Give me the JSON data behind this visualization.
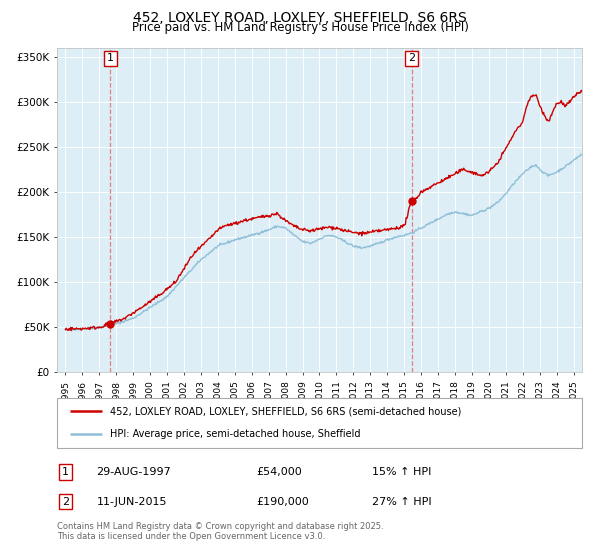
{
  "title": "452, LOXLEY ROAD, LOXLEY, SHEFFIELD, S6 6RS",
  "subtitle": "Price paid vs. HM Land Registry's House Price Index (HPI)",
  "sale1_date": "29-AUG-1997",
  "sale1_price": 54000,
  "sale1_pct": "15%",
  "sale1_x": 1997.65,
  "sale2_date": "11-JUN-2015",
  "sale2_price": 190000,
  "sale2_pct": "27%",
  "sale2_x": 2015.44,
  "legend_line1": "452, LOXLEY ROAD, LOXLEY, SHEFFIELD, S6 6RS (semi-detached house)",
  "legend_line2": "HPI: Average price, semi-detached house, Sheffield",
  "line_color_red": "#cc0000",
  "line_color_blue": "#90c0d8",
  "vline_color": "#e08080",
  "footer": "Contains HM Land Registry data © Crown copyright and database right 2025.\nThis data is licensed under the Open Government Licence v3.0.",
  "ylim_max": 360000,
  "xlim_min": 1994.5,
  "xlim_max": 2025.5,
  "background_color": "#ddeef6",
  "grid_color": "#ffffff",
  "title_fontsize": 10,
  "subtitle_fontsize": 8.5
}
